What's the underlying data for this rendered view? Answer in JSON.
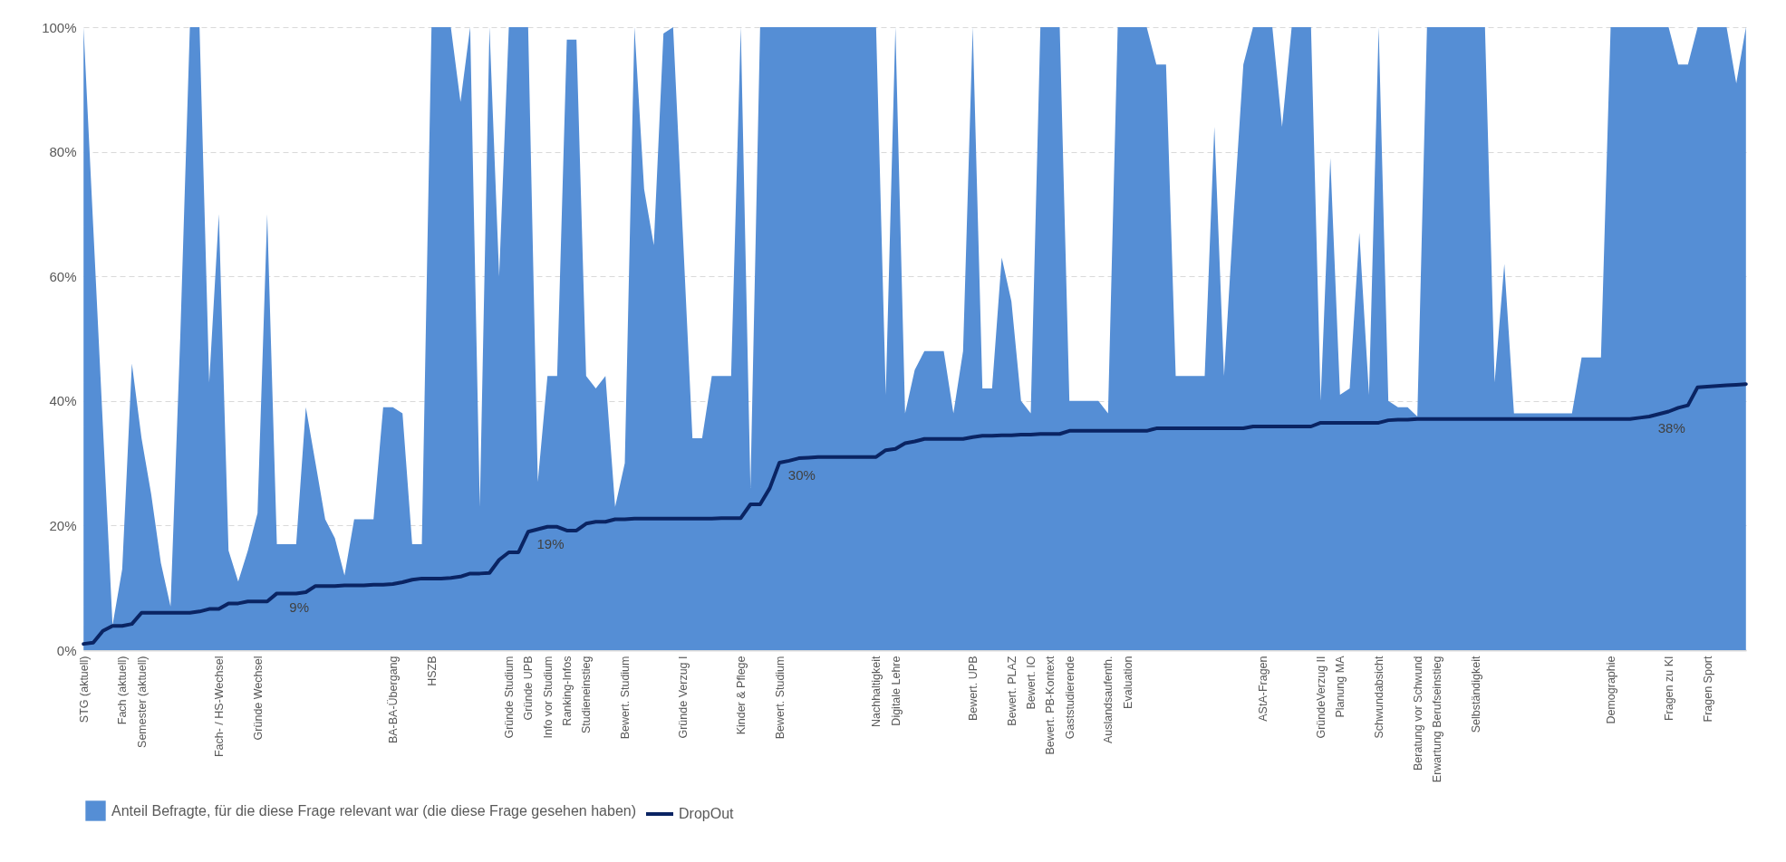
{
  "chart_data": {
    "type": "area",
    "categories": [
      "STG (aktuell)",
      null,
      null,
      null,
      "Fach (aktuell)",
      null,
      "Semester (aktuell)",
      null,
      null,
      null,
      null,
      null,
      null,
      null,
      "Fach- / HS-Wechsel",
      null,
      null,
      null,
      "Gründe Wechsel",
      null,
      null,
      null,
      null,
      null,
      null,
      null,
      null,
      null,
      null,
      null,
      null,
      null,
      "BA-BA-Übergang",
      null,
      null,
      null,
      "HSZB",
      null,
      null,
      null,
      null,
      null,
      null,
      null,
      "Gründe Studium",
      null,
      "Gründe UPB",
      null,
      "Info vor Studium",
      null,
      "Ranking-Infos",
      null,
      "Studieneinstieg",
      null,
      null,
      null,
      "Bewert. Studium",
      null,
      null,
      null,
      null,
      null,
      "Gründe Verzug I",
      null,
      null,
      null,
      null,
      null,
      "Kinder & Pflege",
      null,
      null,
      null,
      "Bewert. Studium",
      null,
      null,
      null,
      null,
      null,
      null,
      null,
      null,
      null,
      "Nachhaltigkeit",
      null,
      "Digitale Lehre",
      null,
      null,
      null,
      null,
      null,
      null,
      null,
      "Bewert. UPB",
      null,
      null,
      null,
      "Bewert. PLAZ",
      null,
      "Bewert. IO",
      null,
      "Bewert. PB-Kontext",
      null,
      "Gaststudierende",
      null,
      null,
      null,
      "Auslandsaufenth.",
      null,
      "Evaluation",
      null,
      null,
      null,
      null,
      null,
      null,
      null,
      null,
      null,
      null,
      null,
      null,
      null,
      "AStA-Fragen",
      null,
      null,
      null,
      null,
      null,
      "GründeVerzug II",
      null,
      "Planung MA",
      null,
      null,
      null,
      "Schwundabsicht",
      null,
      null,
      null,
      "Beratung vor Schwund",
      null,
      "Erwartung Berufseinstieg",
      null,
      null,
      null,
      "Selbständigkeit",
      null,
      null,
      null,
      null,
      null,
      null,
      null,
      null,
      null,
      null,
      null,
      null,
      null,
      "Demographie",
      null,
      null,
      null,
      null,
      null,
      "Fragen zu KI",
      null,
      null,
      null,
      "Fragen Sport",
      null,
      null,
      null,
      null
    ],
    "series": [
      {
        "name": "Anteil Befragte, für die diese Frage relevant war (die diese Frage gesehen haben)",
        "type": "area",
        "color": "#558ed5",
        "values": [
          100,
          68,
          36,
          4,
          13,
          46,
          34,
          25,
          14,
          7,
          50,
          100,
          100,
          43,
          70,
          16,
          11,
          16,
          22,
          70,
          17,
          17,
          17,
          39,
          30,
          21,
          18,
          12,
          21,
          21,
          21,
          39,
          39,
          38,
          17,
          17,
          100,
          100,
          100,
          88,
          100,
          23,
          100,
          60,
          100,
          100,
          100,
          27,
          44,
          44,
          98,
          98,
          44,
          42,
          44,
          23,
          30,
          100,
          74,
          65,
          99,
          100,
          67,
          34,
          34,
          44,
          44,
          44,
          100,
          26,
          100,
          100,
          100,
          100,
          100,
          100,
          100,
          100,
          100,
          100,
          100,
          100,
          100,
          41,
          100,
          38,
          45,
          48,
          48,
          48,
          38,
          48,
          100,
          42,
          42,
          63,
          56,
          40,
          38,
          100,
          100,
          100,
          40,
          40,
          40,
          40,
          38,
          100,
          100,
          100,
          100,
          94,
          94,
          44,
          44,
          44,
          44,
          84,
          44,
          70,
          94,
          100,
          100,
          100,
          84,
          100,
          100,
          100,
          40,
          79,
          41,
          42,
          67,
          41,
          100,
          40,
          39,
          39,
          37.5,
          100,
          100,
          100,
          100,
          100,
          100,
          100,
          43,
          62,
          38,
          38,
          38,
          38,
          38,
          38,
          38,
          47,
          47,
          47,
          100,
          100,
          100,
          100,
          100,
          100,
          100,
          94,
          94,
          100,
          100,
          100,
          100,
          91,
          100
        ]
      },
      {
        "name": "DropOut",
        "type": "line",
        "color": "#0a2463",
        "values": [
          1.0,
          1.2,
          3.1,
          3.9,
          3.9,
          4.2,
          6.0,
          6.0,
          6.0,
          6.0,
          6.0,
          6.0,
          6.2,
          6.6,
          6.6,
          7.5,
          7.5,
          7.8,
          7.8,
          7.8,
          9.1,
          9.1,
          9.1,
          9.3,
          10.3,
          10.3,
          10.3,
          10.4,
          10.4,
          10.4,
          10.5,
          10.5,
          10.6,
          10.9,
          11.3,
          11.5,
          11.5,
          11.5,
          11.6,
          11.8,
          12.3,
          12.3,
          12.4,
          14.5,
          15.7,
          15.7,
          19.0,
          19.4,
          19.8,
          19.8,
          19.2,
          19.2,
          20.3,
          20.6,
          20.6,
          21.0,
          21.0,
          21.1,
          21.1,
          21.1,
          21.1,
          21.1,
          21.1,
          21.1,
          21.1,
          21.1,
          21.2,
          21.2,
          21.2,
          23.4,
          23.4,
          26.0,
          30.1,
          30.4,
          30.8,
          30.9,
          31.0,
          31.0,
          31.0,
          31.0,
          31.0,
          31.0,
          31.0,
          32.1,
          32.3,
          33.2,
          33.5,
          33.9,
          33.9,
          33.9,
          33.9,
          33.9,
          34.2,
          34.4,
          34.4,
          34.5,
          34.5,
          34.6,
          34.6,
          34.7,
          34.7,
          34.7,
          35.2,
          35.2,
          35.2,
          35.2,
          35.2,
          35.2,
          35.2,
          35.2,
          35.2,
          35.6,
          35.6,
          35.6,
          35.6,
          35.6,
          35.6,
          35.6,
          35.6,
          35.6,
          35.6,
          35.9,
          35.9,
          35.9,
          35.9,
          35.9,
          35.9,
          35.9,
          36.5,
          36.5,
          36.5,
          36.5,
          36.5,
          36.5,
          36.5,
          36.9,
          37.0,
          37.0,
          37.1,
          37.1,
          37.1,
          37.1,
          37.1,
          37.1,
          37.1,
          37.1,
          37.1,
          37.1,
          37.1,
          37.1,
          37.1,
          37.1,
          37.1,
          37.1,
          37.1,
          37.1,
          37.1,
          37.1,
          37.1,
          37.1,
          37.1,
          37.3,
          37.5,
          37.9,
          38.3,
          38.9,
          39.3,
          42.2,
          42.3,
          42.4,
          42.5,
          42.6,
          42.7
        ],
        "value_labels": [
          null,
          null,
          null,
          null,
          null,
          null,
          null,
          null,
          null,
          null,
          null,
          null,
          null,
          null,
          null,
          null,
          null,
          null,
          null,
          null,
          null,
          "9%",
          null,
          null,
          null,
          null,
          null,
          null,
          null,
          null,
          null,
          null,
          null,
          null,
          null,
          null,
          null,
          null,
          null,
          null,
          null,
          null,
          null,
          null,
          null,
          null,
          null,
          "19%",
          null,
          null,
          null,
          null,
          null,
          null,
          null,
          null,
          null,
          null,
          null,
          null,
          null,
          null,
          null,
          null,
          null,
          null,
          null,
          null,
          null,
          null,
          null,
          null,
          null,
          "30%",
          null,
          null,
          null,
          null,
          null,
          null,
          null,
          null,
          null,
          null,
          null,
          null,
          null,
          null,
          null,
          null,
          null,
          null,
          null,
          null,
          null,
          null,
          null,
          null,
          null,
          null,
          null,
          null,
          null,
          null,
          null,
          null,
          null,
          null,
          null,
          null,
          null,
          null,
          null,
          null,
          null,
          null,
          null,
          null,
          null,
          null,
          null,
          null,
          null,
          null,
          null,
          null,
          null,
          null,
          null,
          null,
          null,
          null,
          null,
          null,
          null,
          null,
          null,
          null,
          null,
          null,
          null,
          null,
          null,
          null,
          null,
          null,
          null,
          null,
          null,
          null,
          null,
          null,
          null,
          null,
          null,
          null,
          null,
          null,
          null,
          null,
          null,
          null,
          null,
          "38%",
          null,
          null,
          null,
          null,
          null,
          null,
          null,
          null,
          null
        ]
      }
    ],
    "ylim": [
      0,
      100
    ],
    "yticks": [
      {
        "value": 0,
        "label": "0%"
      },
      {
        "value": 20,
        "label": "20%"
      },
      {
        "value": 40,
        "label": "40%"
      },
      {
        "value": 60,
        "label": "60%"
      },
      {
        "value": 80,
        "label": "80%"
      },
      {
        "value": 100,
        "label": "100%"
      }
    ],
    "grid": "y",
    "legend": "bottom"
  }
}
